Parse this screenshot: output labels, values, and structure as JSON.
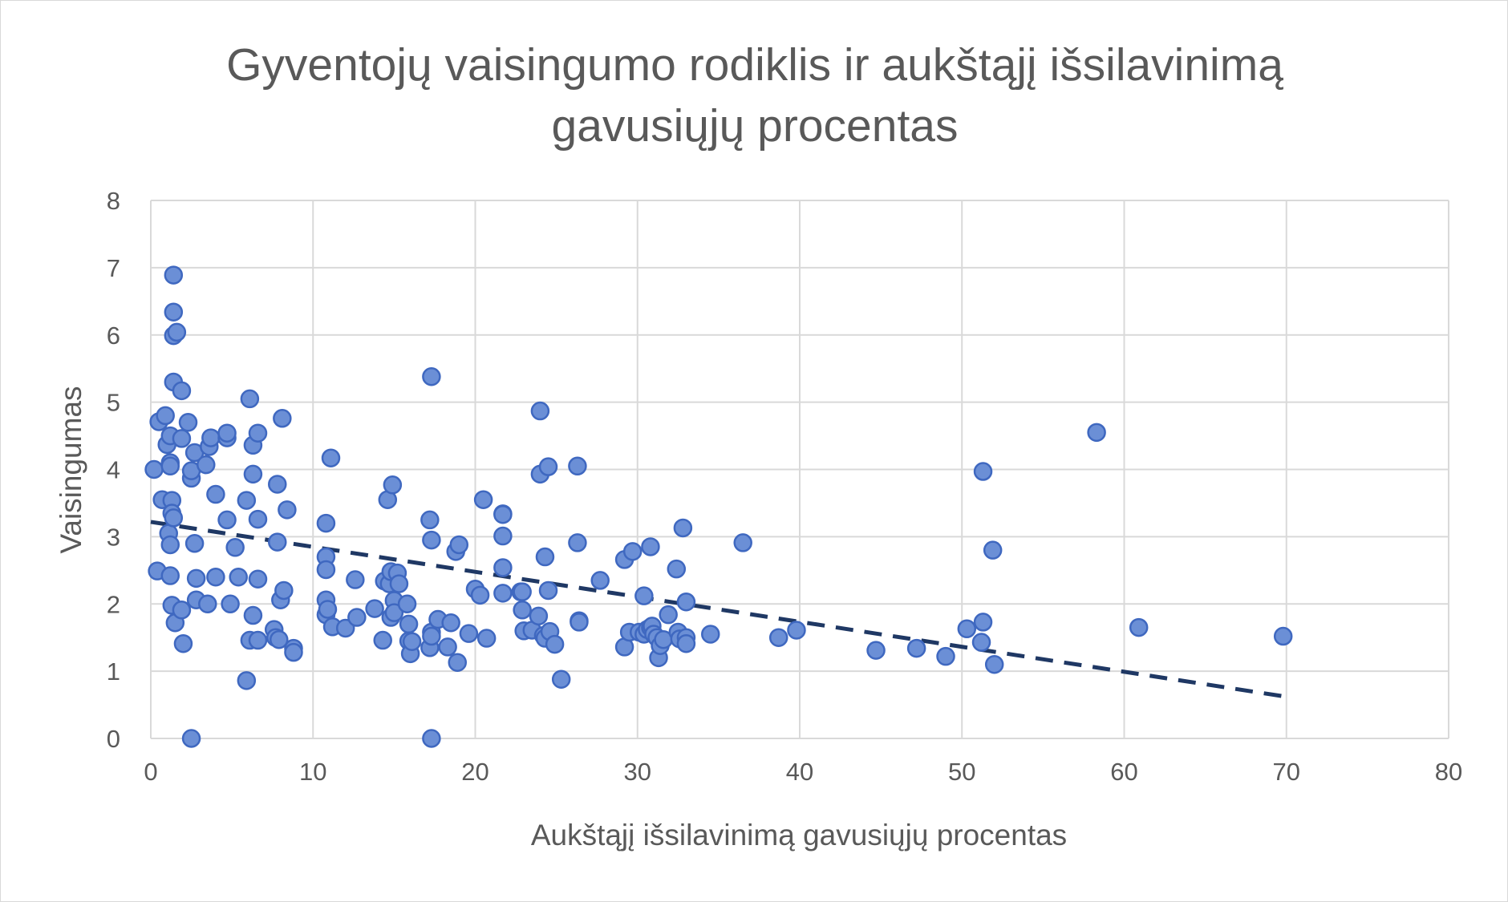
{
  "chart_data": {
    "type": "scatter",
    "title": "Gyventojų vaisingumo rodiklis ir aukštąjį išsilavinimą gavusiųjų procentas",
    "xlabel": "Aukštąjį išsilavinimą gavusiųjų procentas",
    "ylabel": "Vaisingumas",
    "xlim": [
      0,
      80
    ],
    "ylim": [
      0,
      8
    ],
    "x_ticks": [
      "0",
      "10",
      "20",
      "30",
      "40",
      "50",
      "60",
      "70",
      "80"
    ],
    "y_ticks": [
      "0",
      "1",
      "2",
      "3",
      "4",
      "5",
      "6",
      "7",
      "8"
    ],
    "grid": true,
    "legend": "none",
    "marker_color": "#6b8fd6",
    "marker_edge_color": "#3f68c0",
    "trendline": {
      "type": "linear",
      "style": "dashed",
      "color": "#1f3864",
      "x": [
        0,
        70
      ],
      "y": [
        3.22,
        0.62
      ]
    },
    "series": [
      {
        "points": [
          [
            0.2,
            4.0
          ],
          [
            0.4,
            2.49
          ],
          [
            0.5,
            4.71
          ],
          [
            0.7,
            3.55
          ],
          [
            0.9,
            4.8
          ],
          [
            1.0,
            4.37
          ],
          [
            1.1,
            3.05
          ],
          [
            1.2,
            4.5
          ],
          [
            1.2,
            4.1
          ],
          [
            1.2,
            4.05
          ],
          [
            1.2,
            2.88
          ],
          [
            1.2,
            2.42
          ],
          [
            1.3,
            3.54
          ],
          [
            1.3,
            3.35
          ],
          [
            1.3,
            1.98
          ],
          [
            1.4,
            3.28
          ],
          [
            1.4,
            6.89
          ],
          [
            1.4,
            6.34
          ],
          [
            1.4,
            5.99
          ],
          [
            1.4,
            5.3
          ],
          [
            1.5,
            1.72
          ],
          [
            1.6,
            6.04
          ],
          [
            1.9,
            5.17
          ],
          [
            1.9,
            4.46
          ],
          [
            1.9,
            1.91
          ],
          [
            2.0,
            1.41
          ],
          [
            2.3,
            4.7
          ],
          [
            2.5,
            3.87
          ],
          [
            2.5,
            3.98
          ],
          [
            2.5,
            0.0
          ],
          [
            2.7,
            4.25
          ],
          [
            2.7,
            2.9
          ],
          [
            2.8,
            2.06
          ],
          [
            2.8,
            2.38
          ],
          [
            3.4,
            4.07
          ],
          [
            3.5,
            2.0
          ],
          [
            3.6,
            4.34
          ],
          [
            3.7,
            4.47
          ],
          [
            4.0,
            3.63
          ],
          [
            4.0,
            2.4
          ],
          [
            4.7,
            4.47
          ],
          [
            4.7,
            4.54
          ],
          [
            4.7,
            3.25
          ],
          [
            4.9,
            2.0
          ],
          [
            5.2,
            2.84
          ],
          [
            5.4,
            2.4
          ],
          [
            5.9,
            3.54
          ],
          [
            5.9,
            0.86
          ],
          [
            6.1,
            5.05
          ],
          [
            6.1,
            1.46
          ],
          [
            6.3,
            4.36
          ],
          [
            6.3,
            3.93
          ],
          [
            6.3,
            1.83
          ],
          [
            6.6,
            4.54
          ],
          [
            6.6,
            3.26
          ],
          [
            6.6,
            2.37
          ],
          [
            6.6,
            1.46
          ],
          [
            7.6,
            1.62
          ],
          [
            7.7,
            1.5
          ],
          [
            7.8,
            3.78
          ],
          [
            7.8,
            2.92
          ],
          [
            7.9,
            1.47
          ],
          [
            8.0,
            2.06
          ],
          [
            8.1,
            4.76
          ],
          [
            8.2,
            2.2
          ],
          [
            8.4,
            3.4
          ],
          [
            8.8,
            1.34
          ],
          [
            8.8,
            1.28
          ],
          [
            10.8,
            3.2
          ],
          [
            10.8,
            2.7
          ],
          [
            10.8,
            2.51
          ],
          [
            10.8,
            2.06
          ],
          [
            10.8,
            1.84
          ],
          [
            10.9,
            1.92
          ],
          [
            11.1,
            4.17
          ],
          [
            11.2,
            1.66
          ],
          [
            12.0,
            1.64
          ],
          [
            12.6,
            2.36
          ],
          [
            12.7,
            1.8
          ],
          [
            13.8,
            1.93
          ],
          [
            14.3,
            1.46
          ],
          [
            14.4,
            2.34
          ],
          [
            14.6,
            3.55
          ],
          [
            14.7,
            2.3
          ],
          [
            14.8,
            2.48
          ],
          [
            14.8,
            1.8
          ],
          [
            14.9,
            3.77
          ],
          [
            15.0,
            2.05
          ],
          [
            15.0,
            1.87
          ],
          [
            15.2,
            2.46
          ],
          [
            15.3,
            2.3
          ],
          [
            15.8,
            2.0
          ],
          [
            15.9,
            1.7
          ],
          [
            15.9,
            1.45
          ],
          [
            16.0,
            1.26
          ],
          [
            16.1,
            1.44
          ],
          [
            17.2,
            3.25
          ],
          [
            17.3,
            2.95
          ],
          [
            17.2,
            1.35
          ],
          [
            17.3,
            5.38
          ],
          [
            17.3,
            1.58
          ],
          [
            17.3,
            1.52
          ],
          [
            17.3,
            0.0
          ],
          [
            17.7,
            1.77
          ],
          [
            18.3,
            1.36
          ],
          [
            18.5,
            1.72
          ],
          [
            18.8,
            2.78
          ],
          [
            18.9,
            1.13
          ],
          [
            19.0,
            2.88
          ],
          [
            19.6,
            1.56
          ],
          [
            20.0,
            2.22
          ],
          [
            20.3,
            2.13
          ],
          [
            20.5,
            3.55
          ],
          [
            20.7,
            1.49
          ],
          [
            21.7,
            3.34
          ],
          [
            21.7,
            3.33
          ],
          [
            21.7,
            3.01
          ],
          [
            21.7,
            2.54
          ],
          [
            21.7,
            2.16
          ],
          [
            22.8,
            2.18
          ],
          [
            22.9,
            2.18
          ],
          [
            22.9,
            1.91
          ],
          [
            23.0,
            1.6
          ],
          [
            23.5,
            1.61
          ],
          [
            23.9,
            1.82
          ],
          [
            24.0,
            4.87
          ],
          [
            24.0,
            3.93
          ],
          [
            24.2,
            1.53
          ],
          [
            24.3,
            2.7
          ],
          [
            24.3,
            1.49
          ],
          [
            24.5,
            2.2
          ],
          [
            24.5,
            4.04
          ],
          [
            24.6,
            1.59
          ],
          [
            24.9,
            1.4
          ],
          [
            25.3,
            0.88
          ],
          [
            26.3,
            4.05
          ],
          [
            26.3,
            2.91
          ],
          [
            26.4,
            1.75
          ],
          [
            26.4,
            1.73
          ],
          [
            27.7,
            2.35
          ],
          [
            29.2,
            2.66
          ],
          [
            29.2,
            1.36
          ],
          [
            29.5,
            1.58
          ],
          [
            29.7,
            2.78
          ],
          [
            30.1,
            1.58
          ],
          [
            30.4,
            2.12
          ],
          [
            30.4,
            1.55
          ],
          [
            30.6,
            1.62
          ],
          [
            30.8,
            2.85
          ],
          [
            30.8,
            1.65
          ],
          [
            30.9,
            1.67
          ],
          [
            31.0,
            1.55
          ],
          [
            31.2,
            1.5
          ],
          [
            31.3,
            1.2
          ],
          [
            31.4,
            1.38
          ],
          [
            31.6,
            1.47
          ],
          [
            31.9,
            1.84
          ],
          [
            32.4,
            2.52
          ],
          [
            32.5,
            1.58
          ],
          [
            32.6,
            1.48
          ],
          [
            32.8,
            3.13
          ],
          [
            33.0,
            2.03
          ],
          [
            33.0,
            1.5
          ],
          [
            33.0,
            1.41
          ],
          [
            34.5,
            1.55
          ],
          [
            36.5,
            2.91
          ],
          [
            38.7,
            1.5
          ],
          [
            39.8,
            1.61
          ],
          [
            44.7,
            1.31
          ],
          [
            47.2,
            1.34
          ],
          [
            49.0,
            1.22
          ],
          [
            50.3,
            1.63
          ],
          [
            51.2,
            1.43
          ],
          [
            51.3,
            1.73
          ],
          [
            51.3,
            3.97
          ],
          [
            51.9,
            2.8
          ],
          [
            52.0,
            1.1
          ],
          [
            58.3,
            4.55
          ],
          [
            60.9,
            1.65
          ],
          [
            69.8,
            1.52
          ]
        ]
      }
    ]
  }
}
